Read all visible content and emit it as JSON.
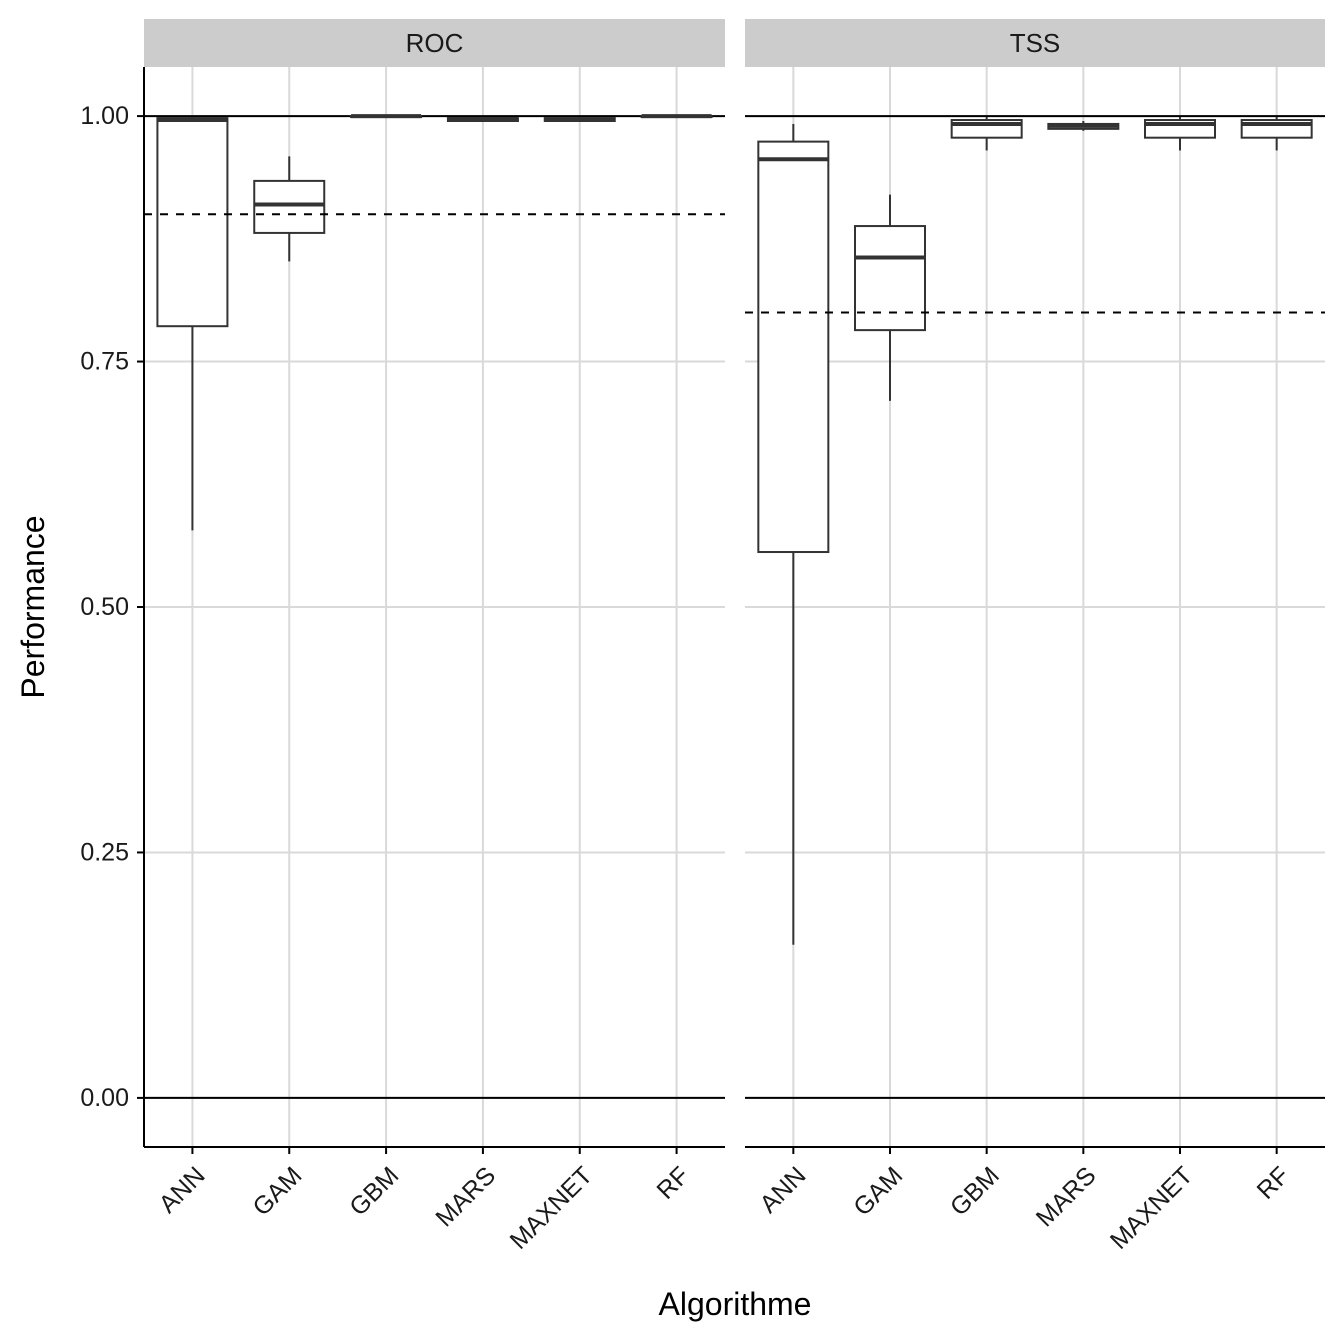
{
  "chart_data": {
    "type": "boxplot",
    "xlabel": "Algorithme",
    "ylabel": "Performance",
    "ylim": [
      -0.05,
      1.05
    ],
    "yticks": [
      0.0,
      0.25,
      0.5,
      0.75,
      1.0
    ],
    "ytick_labels": [
      "0.00",
      "0.25",
      "0.50",
      "0.75",
      "1.00"
    ],
    "categories": [
      "ANN",
      "GAM",
      "GBM",
      "MARS",
      "MAXNET",
      "RF"
    ],
    "reference_lines_solid": [
      0,
      1
    ],
    "panels": [
      {
        "name": "ROC",
        "threshold": 0.9,
        "boxes": [
          {
            "category": "ANN",
            "ymin": 0.578,
            "q1": 0.786,
            "median": 0.996,
            "q3": 0.998,
            "ymax": 0.999
          },
          {
            "category": "GAM",
            "ymin": 0.852,
            "q1": 0.881,
            "median": 0.91,
            "q3": 0.934,
            "ymax": 0.959
          },
          {
            "category": "GBM",
            "ymin": 0.999,
            "q1": 0.999,
            "median": 1.0,
            "q3": 1.0,
            "ymax": 1.0
          },
          {
            "category": "MARS",
            "ymin": 0.995,
            "q1": 0.995,
            "median": 0.997,
            "q3": 0.998,
            "ymax": 0.999
          },
          {
            "category": "MAXNET",
            "ymin": 0.995,
            "q1": 0.995,
            "median": 0.996,
            "q3": 0.998,
            "ymax": 0.999
          },
          {
            "category": "RF",
            "ymin": 0.999,
            "q1": 0.999,
            "median": 1.0,
            "q3": 1.0,
            "ymax": 1.0
          }
        ]
      },
      {
        "name": "TSS",
        "threshold": 0.8,
        "boxes": [
          {
            "category": "ANN",
            "ymin": 0.156,
            "q1": 0.556,
            "median": 0.956,
            "q3": 0.974,
            "ymax": 0.992
          },
          {
            "category": "GAM",
            "ymin": 0.71,
            "q1": 0.782,
            "median": 0.856,
            "q3": 0.888,
            "ymax": 0.92
          },
          {
            "category": "GBM",
            "ymin": 0.965,
            "q1": 0.978,
            "median": 0.992,
            "q3": 0.996,
            "ymax": 0.999
          },
          {
            "category": "MARS",
            "ymin": 0.985,
            "q1": 0.987,
            "median": 0.99,
            "q3": 0.992,
            "ymax": 0.995
          },
          {
            "category": "MAXNET",
            "ymin": 0.965,
            "q1": 0.978,
            "median": 0.992,
            "q3": 0.996,
            "ymax": 0.999
          },
          {
            "category": "RF",
            "ymin": 0.965,
            "q1": 0.978,
            "median": 0.992,
            "q3": 0.996,
            "ymax": 0.999
          }
        ]
      }
    ]
  },
  "colors": {
    "strip_background": "#cccccc",
    "grid": "#d9d9d9",
    "box_line": "#333333",
    "axis_line": "#000000",
    "text": "#1a1a1a"
  }
}
